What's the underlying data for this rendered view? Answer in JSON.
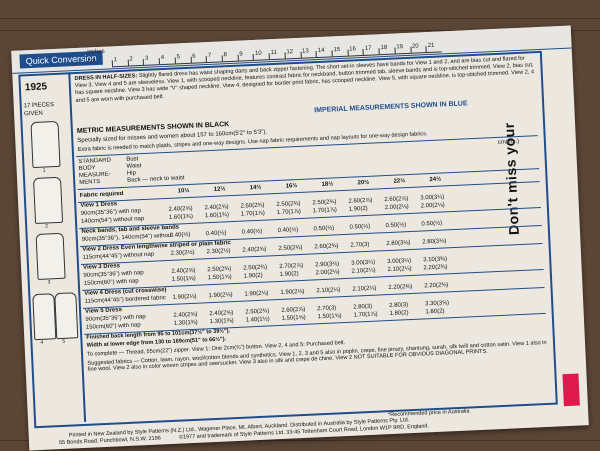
{
  "header": {
    "quick_conversion": "Quick Conversion",
    "ruler_inches": "inches",
    "ruler_cm": "cm",
    "ruler_numbers": [
      "1",
      "2",
      "3",
      "4",
      "5",
      "6",
      "7",
      "8",
      "9",
      "10",
      "11",
      "12",
      "13",
      "14",
      "15",
      "16",
      "17",
      "18",
      "19",
      "20",
      "21"
    ],
    "side_text": "Don't miss your"
  },
  "left": {
    "pattern_number": "1925",
    "pieces": "17 PIECES GIVEN",
    "view_labels": [
      "1",
      "2",
      "3",
      "4",
      "5"
    ]
  },
  "description": {
    "title": "DRESS IN HALF-SIZES:",
    "text": "Slightly flared dress has waist shaping darts and back zipper fastening. The short set-in sleeves have bands for View 1 and 2, and are bias cut and flared for View 3. View 4 and 5 are sleeveless. View 1, with scooped neckline, features contrast fabric for neckband, button trimmed tab, sleeve bands and is top-stitched trimmed. View 2, bias cut, has square neckline. View 3 has wide \"V\" shaped neckline. View 4, designed for border print fabric, has scooped neckline. View 5, with square neckline, is top-stitched trimmed. View 2, 4 and 5 are worn with purchased belt."
  },
  "imperial_heading": "IMPERIAL MEASUREMENTS SHOWN IN BLUE",
  "metric_heading": "METRIC MEASUREMENTS SHOWN IN BLACK",
  "special": "Specially sized for misses and women about 157 to 160cm(5'2\" to 5'3\").",
  "extra": "Extra fabric is needed to match plaids, stripes and one-way designs. Use nap fabric requirements and nap layouts for one-way design fabrics.",
  "measurements": {
    "labels": [
      "STANDARD",
      "BODY",
      "MEASURE-",
      "MENTS"
    ],
    "rows": [
      "Bust",
      "Waist",
      "Hip",
      "Back — neck to waist"
    ],
    "units": "cm(ins.)"
  },
  "sizes_label": "Fabric required",
  "sizes": [
    "10½",
    "12½",
    "14½",
    "16½",
    "18½",
    "20½",
    "22½",
    "24½"
  ],
  "sections": [
    {
      "title": "View 1  Dress",
      "lines": [
        {
          "label": "90cm(35\"36\") with nap",
          "vals": [
            "2.40(2⅝)",
            "2.40(2⅝)",
            "2.50(2¾)",
            "2.50(2¾)",
            "2.50(2¾)",
            "2.60(2⅞)",
            "2.60(2⅞)",
            "3.00(3¼)"
          ]
        },
        {
          "label": "140cm(54\") without nap",
          "vals": [
            "1.60(1¾)",
            "1.60(1¾)",
            "1.70(1⅞)",
            "1.70(1⅞)",
            "1.70(1⅞)",
            "1.90(2)",
            "2.00(2⅛)",
            "2.00(2⅛)"
          ]
        }
      ]
    },
    {
      "title": "Neck bands, tab and sleeve bands",
      "lines": [
        {
          "label": "90cm(35\"36\"), 140cm(54\") without nap",
          "vals": [
            "0.40(½)",
            "0.40(½)",
            "0.40(½)",
            "0.40(½)",
            "0.50(½)",
            "0.50(½)",
            "0.50(½)",
            "0.50(½)"
          ]
        }
      ]
    },
    {
      "title": "View 2  Dress  Even lengthwise striped or plain fabric",
      "lines": [
        {
          "label": "115cm(44\"45\") without nap",
          "vals": [
            "2.30(2½)",
            "2.30(2½)",
            "2.40(2⅝)",
            "2.50(2¾)",
            "2.60(2¾)",
            "2.70(3)",
            "2.80(3⅛)",
            "2.80(3⅛)"
          ]
        }
      ]
    },
    {
      "title": "View 3  Dress",
      "lines": [
        {
          "label": "90cm(35\"36\") with nap",
          "vals": [
            "2.40(2⅝)",
            "2.50(2¾)",
            "2.50(2¾)",
            "2.70(2⅞)",
            "2.90(3⅛)",
            "3.00(3¼)",
            "3.00(3¼)",
            "3.10(3⅜)"
          ]
        },
        {
          "label": "150cm(60\") with nap",
          "vals": [
            "1.50(1⅝)",
            "1.50(1⅝)",
            "1.90(2)",
            "1.90(2)",
            "2.00(2⅛)",
            "2.10(2¼)",
            "2.10(2¼)",
            "2.20(2⅜)"
          ]
        }
      ]
    },
    {
      "title": "View 4  Dress (cut crosswise)",
      "lines": [
        {
          "label": "115cm(44\"45\") bordered fabric",
          "vals": [
            "1.90(2⅛)",
            "1.90(2⅛)",
            "1.90(2⅛)",
            "1.90(2⅛)",
            "2.10(2¼)",
            "2.10(2¼)",
            "2.20(2⅜)",
            "2.20(2⅜)"
          ]
        }
      ]
    },
    {
      "title": "View 5  Dress",
      "lines": [
        {
          "label": "90cm(35\"36\") with nap",
          "vals": [
            "2.40(2⅝)",
            "2.40(2⅝)",
            "2.50(2¾)",
            "2.60(2⅞)",
            "2.70(3)",
            "2.80(3)",
            "2.80(3)",
            "3.30(3⅝)"
          ]
        },
        {
          "label": "150cm(60\") with nap",
          "vals": [
            "1.30(1⅜)",
            "1.30(1⅜)",
            "1.40(1½)",
            "1.50(1⅝)",
            "1.50(1⅝)",
            "1.70(1⅞)",
            "1.80(2)",
            "1.80(2)"
          ]
        }
      ]
    }
  ],
  "finished_back": "Finished back length from 95 to 101cm(37½\" to 39½\").",
  "width_lower": "Width at lower edge from 130 to 169cm(51\" to 66½\").",
  "to_complete": "To complete — Thread, 55cm(22\") zipper. View 1: One 2cm(¾\") button. View 2, 4 and 5: Purchased belt.",
  "suggested": "Suggested fabrics — Cotton, lawn, rayon, wool/cotton blends and synthetics. View 1, 2, 3 and 5 also in poplin, crepe, fine jersey, shantung, surah, silk twill and cotton satin. View 1 also in fine wool. View 2 also in color woven stripes and seersucker. View 3 also in silk and crepe de chine. View 2 NOT SUITABLE FOR OBVIOUS DIAGONAL PRINTS.",
  "footer": {
    "recommended": "*Recommended price in Australia.",
    "printed": "Printed in New Zealand by Style Patterns (N.Z.) Ltd., Wagener Place, Mt. Albert, Auckland. Distributed in Australia by Style Patterns Pty. Ltd.",
    "address": "55 Bonds Road, Punchbowl, N.S.W. 2196",
    "copyright": "©1977 and trademark of Style Patterns Ltd. 33-45 Tottenham Court Road, London W1P 9RD, England."
  },
  "colors": {
    "blue": "#1f4d8c",
    "paper": "#ece8e0",
    "wood": "#5b4636",
    "red": "#e0194d"
  }
}
